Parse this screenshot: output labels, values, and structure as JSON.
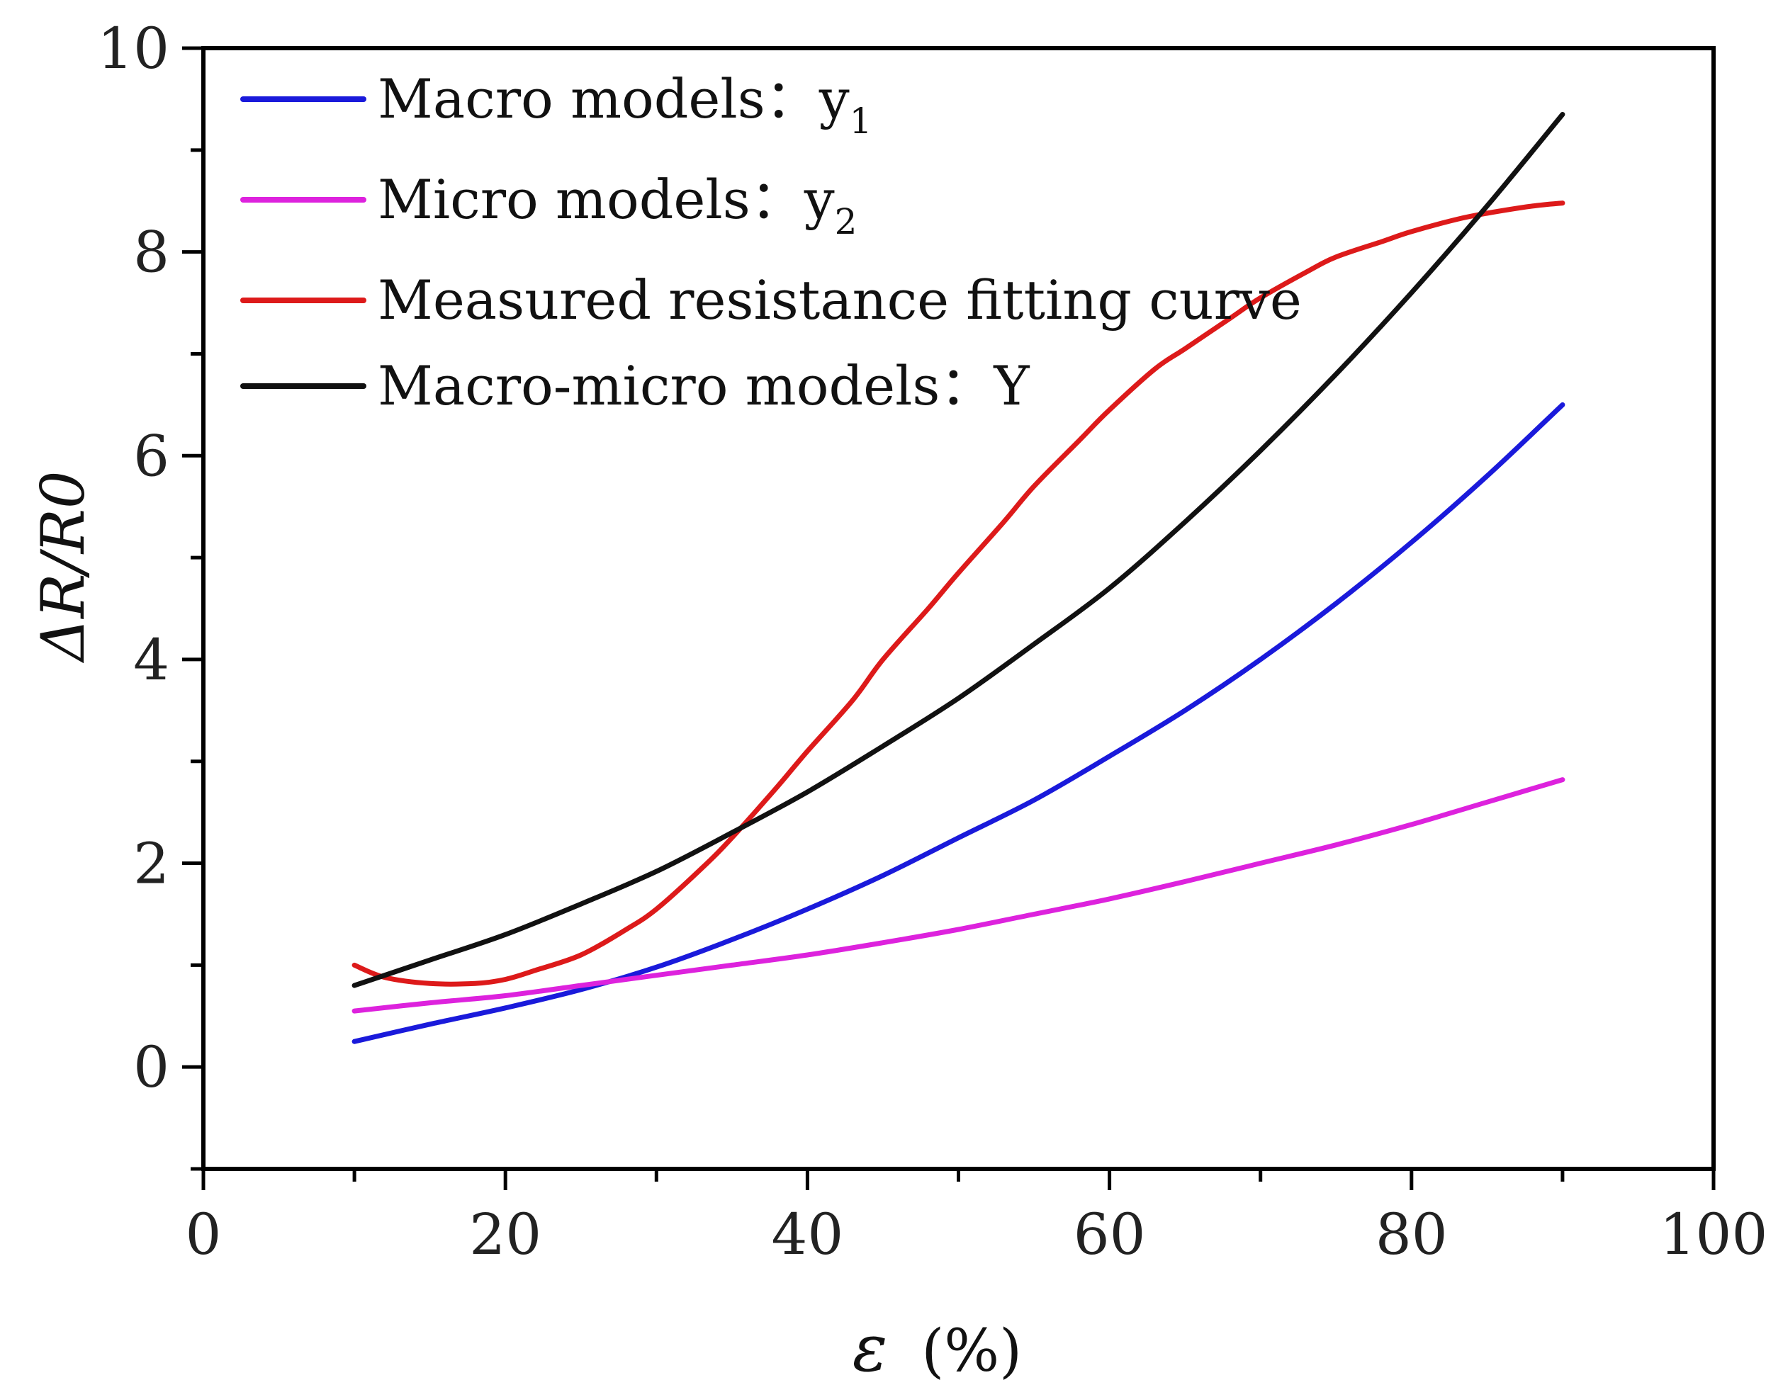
{
  "chart_data": {
    "type": "line",
    "title": "",
    "xlabel": "ε (%)",
    "xlabel_symbol": "ε",
    "xlabel_unit": "(%)",
    "ylabel": "ΔR/R0",
    "xlim": [
      0,
      100
    ],
    "ylim": [
      -1,
      10
    ],
    "xticks": [
      0,
      20,
      40,
      60,
      80,
      100
    ],
    "yticks": [
      0,
      2,
      4,
      6,
      8,
      10
    ],
    "grid": false,
    "legend_position": "top-left",
    "series": [
      {
        "name": "Macro models：y1",
        "legend_text": "Macro models：y",
        "legend_sub": "1",
        "color": "#1a1adb",
        "x": [
          10,
          15,
          20,
          25,
          30,
          35,
          40,
          45,
          50,
          55,
          60,
          65,
          70,
          75,
          80,
          85,
          90
        ],
        "y": [
          0.25,
          0.42,
          0.58,
          0.76,
          0.98,
          1.25,
          1.55,
          1.88,
          2.25,
          2.62,
          3.05,
          3.5,
          4.0,
          4.55,
          5.15,
          5.8,
          6.5
        ]
      },
      {
        "name": "Micro models：y2",
        "legend_text": "Micro models：y",
        "legend_sub": "2",
        "color": "#dd22dd",
        "x": [
          10,
          15,
          20,
          25,
          30,
          35,
          40,
          45,
          50,
          55,
          60,
          65,
          70,
          75,
          80,
          85,
          90
        ],
        "y": [
          0.55,
          0.63,
          0.7,
          0.8,
          0.9,
          1.0,
          1.1,
          1.22,
          1.35,
          1.5,
          1.65,
          1.82,
          2.0,
          2.18,
          2.38,
          2.6,
          2.82
        ]
      },
      {
        "name": "Measured resistance fitting curve",
        "legend_text": "Measured resistance fitting curve",
        "legend_sub": "",
        "color": "#dd1a1a",
        "x": [
          10,
          12,
          15,
          18,
          20,
          22,
          25,
          28,
          30,
          33,
          35,
          38,
          40,
          43,
          45,
          48,
          50,
          53,
          55,
          58,
          60,
          63,
          65,
          68,
          70,
          73,
          75,
          78,
          80,
          83,
          85,
          88,
          90
        ],
        "y": [
          1.0,
          0.88,
          0.82,
          0.82,
          0.86,
          0.95,
          1.1,
          1.35,
          1.55,
          1.95,
          2.25,
          2.75,
          3.1,
          3.6,
          4.0,
          4.5,
          4.85,
          5.35,
          5.7,
          6.15,
          6.45,
          6.85,
          7.05,
          7.35,
          7.55,
          7.8,
          7.95,
          8.1,
          8.2,
          8.32,
          8.38,
          8.45,
          8.48
        ]
      },
      {
        "name": "Macro-micro models：Y",
        "legend_text": "Macro-micro models：Y",
        "legend_sub": "",
        "color": "#111111",
        "x": [
          10,
          15,
          20,
          25,
          30,
          35,
          40,
          45,
          50,
          55,
          60,
          65,
          70,
          75,
          80,
          85,
          90
        ],
        "y": [
          0.8,
          1.05,
          1.3,
          1.6,
          1.92,
          2.3,
          2.7,
          3.15,
          3.62,
          4.15,
          4.7,
          5.35,
          6.05,
          6.8,
          7.6,
          8.45,
          9.35
        ]
      }
    ]
  }
}
